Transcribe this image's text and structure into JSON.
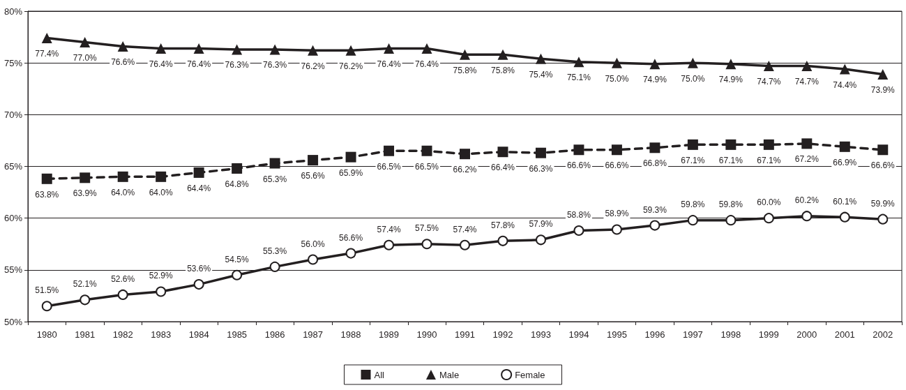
{
  "chart_data": {
    "type": "line",
    "categories": [
      "1980",
      "1981",
      "1982",
      "1983",
      "1984",
      "1985",
      "1986",
      "1987",
      "1988",
      "1989",
      "1990",
      "1991",
      "1992",
      "1993",
      "1994",
      "1995",
      "1996",
      "1997",
      "1998",
      "1999",
      "2000",
      "2001",
      "2002"
    ],
    "series": [
      {
        "name": "All",
        "color": "#231f20",
        "marker": "square",
        "line_style": "dashed",
        "values": [
          63.8,
          63.9,
          64.0,
          64.0,
          64.4,
          64.8,
          65.3,
          65.6,
          65.9,
          66.5,
          66.5,
          66.2,
          66.4,
          66.3,
          66.6,
          66.6,
          66.8,
          67.1,
          67.1,
          67.1,
          67.2,
          66.9,
          66.6
        ],
        "value_labels": [
          "63.8%",
          "63.9%",
          "64.0%",
          "64.0%",
          "64.4%",
          "64.8%",
          "65.3%",
          "65.6%",
          "65.9%",
          "66.5%",
          "66.5%",
          "66.2%",
          "66.4%",
          "66.3%",
          "66.6%",
          "66.6%",
          "66.8%",
          "67.1%",
          "67.1%",
          "67.1%",
          "67.2%",
          "66.9%",
          "66.6%"
        ]
      },
      {
        "name": "Male",
        "color": "#231f20",
        "marker": "triangle",
        "line_style": "solid",
        "values": [
          77.4,
          77.0,
          76.6,
          76.4,
          76.4,
          76.3,
          76.3,
          76.2,
          76.2,
          76.4,
          76.4,
          75.8,
          75.8,
          75.4,
          75.1,
          75.0,
          74.9,
          75.0,
          74.9,
          74.7,
          74.7,
          74.4,
          73.9
        ],
        "value_labels": [
          "77.4%",
          "77.0%",
          "76.6%",
          "76.4%",
          "76.4%",
          "76.3%",
          "76.3%",
          "76.2%",
          "76.2%",
          "76.4%",
          "76.4%",
          "75.8%",
          "75.8%",
          "75.4%",
          "75.1%",
          "75.0%",
          "74.9%",
          "75.0%",
          "74.9%",
          "74.7%",
          "74.7%",
          "74.4%",
          "73.9%"
        ]
      },
      {
        "name": "Female",
        "color": "#231f20",
        "marker": "circle",
        "line_style": "solid",
        "values": [
          51.5,
          52.1,
          52.6,
          52.9,
          53.6,
          54.5,
          55.3,
          56.0,
          56.6,
          57.4,
          57.5,
          57.4,
          57.8,
          57.9,
          58.8,
          58.9,
          59.3,
          59.8,
          59.8,
          60.0,
          60.2,
          60.1,
          59.9
        ],
        "value_labels": [
          "51.5%",
          "52.1%",
          "52.6%",
          "52.9%",
          "53.6%",
          "54.5%",
          "55.3%",
          "56.0%",
          "56.6%",
          "57.4%",
          "57.5%",
          "57.4%",
          "57.8%",
          "57.9%",
          "58.8%",
          "58.9%",
          "59.3%",
          "59.8%",
          "59.8%",
          "60.0%",
          "60.2%",
          "60.1%",
          "59.9%"
        ]
      }
    ],
    "ylim": [
      50,
      80
    ],
    "yticks": [
      {
        "value": 50,
        "label": "50%"
      },
      {
        "value": 55,
        "label": "55%"
      },
      {
        "value": 60,
        "label": "60%"
      },
      {
        "value": 65,
        "label": "65%"
      },
      {
        "value": 70,
        "label": "70%"
      },
      {
        "value": 75,
        "label": "75%"
      },
      {
        "value": 80,
        "label": "80%"
      }
    ],
    "grid": "y",
    "legend": "bottom"
  }
}
